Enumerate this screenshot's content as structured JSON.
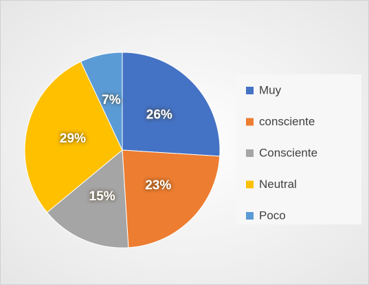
{
  "chart_data": {
    "type": "pie",
    "categories": [
      "Muy",
      "consciente",
      "Consciente",
      "Neutral",
      "Poco"
    ],
    "values": [
      26,
      23,
      15,
      29,
      7
    ],
    "value_labels": [
      "26%",
      "23%",
      "15%",
      "29%",
      "7%"
    ],
    "colors": [
      "#4472c4",
      "#ed7d31",
      "#a5a5a5",
      "#ffc000",
      "#5b9bd5"
    ],
    "legend": "right"
  }
}
